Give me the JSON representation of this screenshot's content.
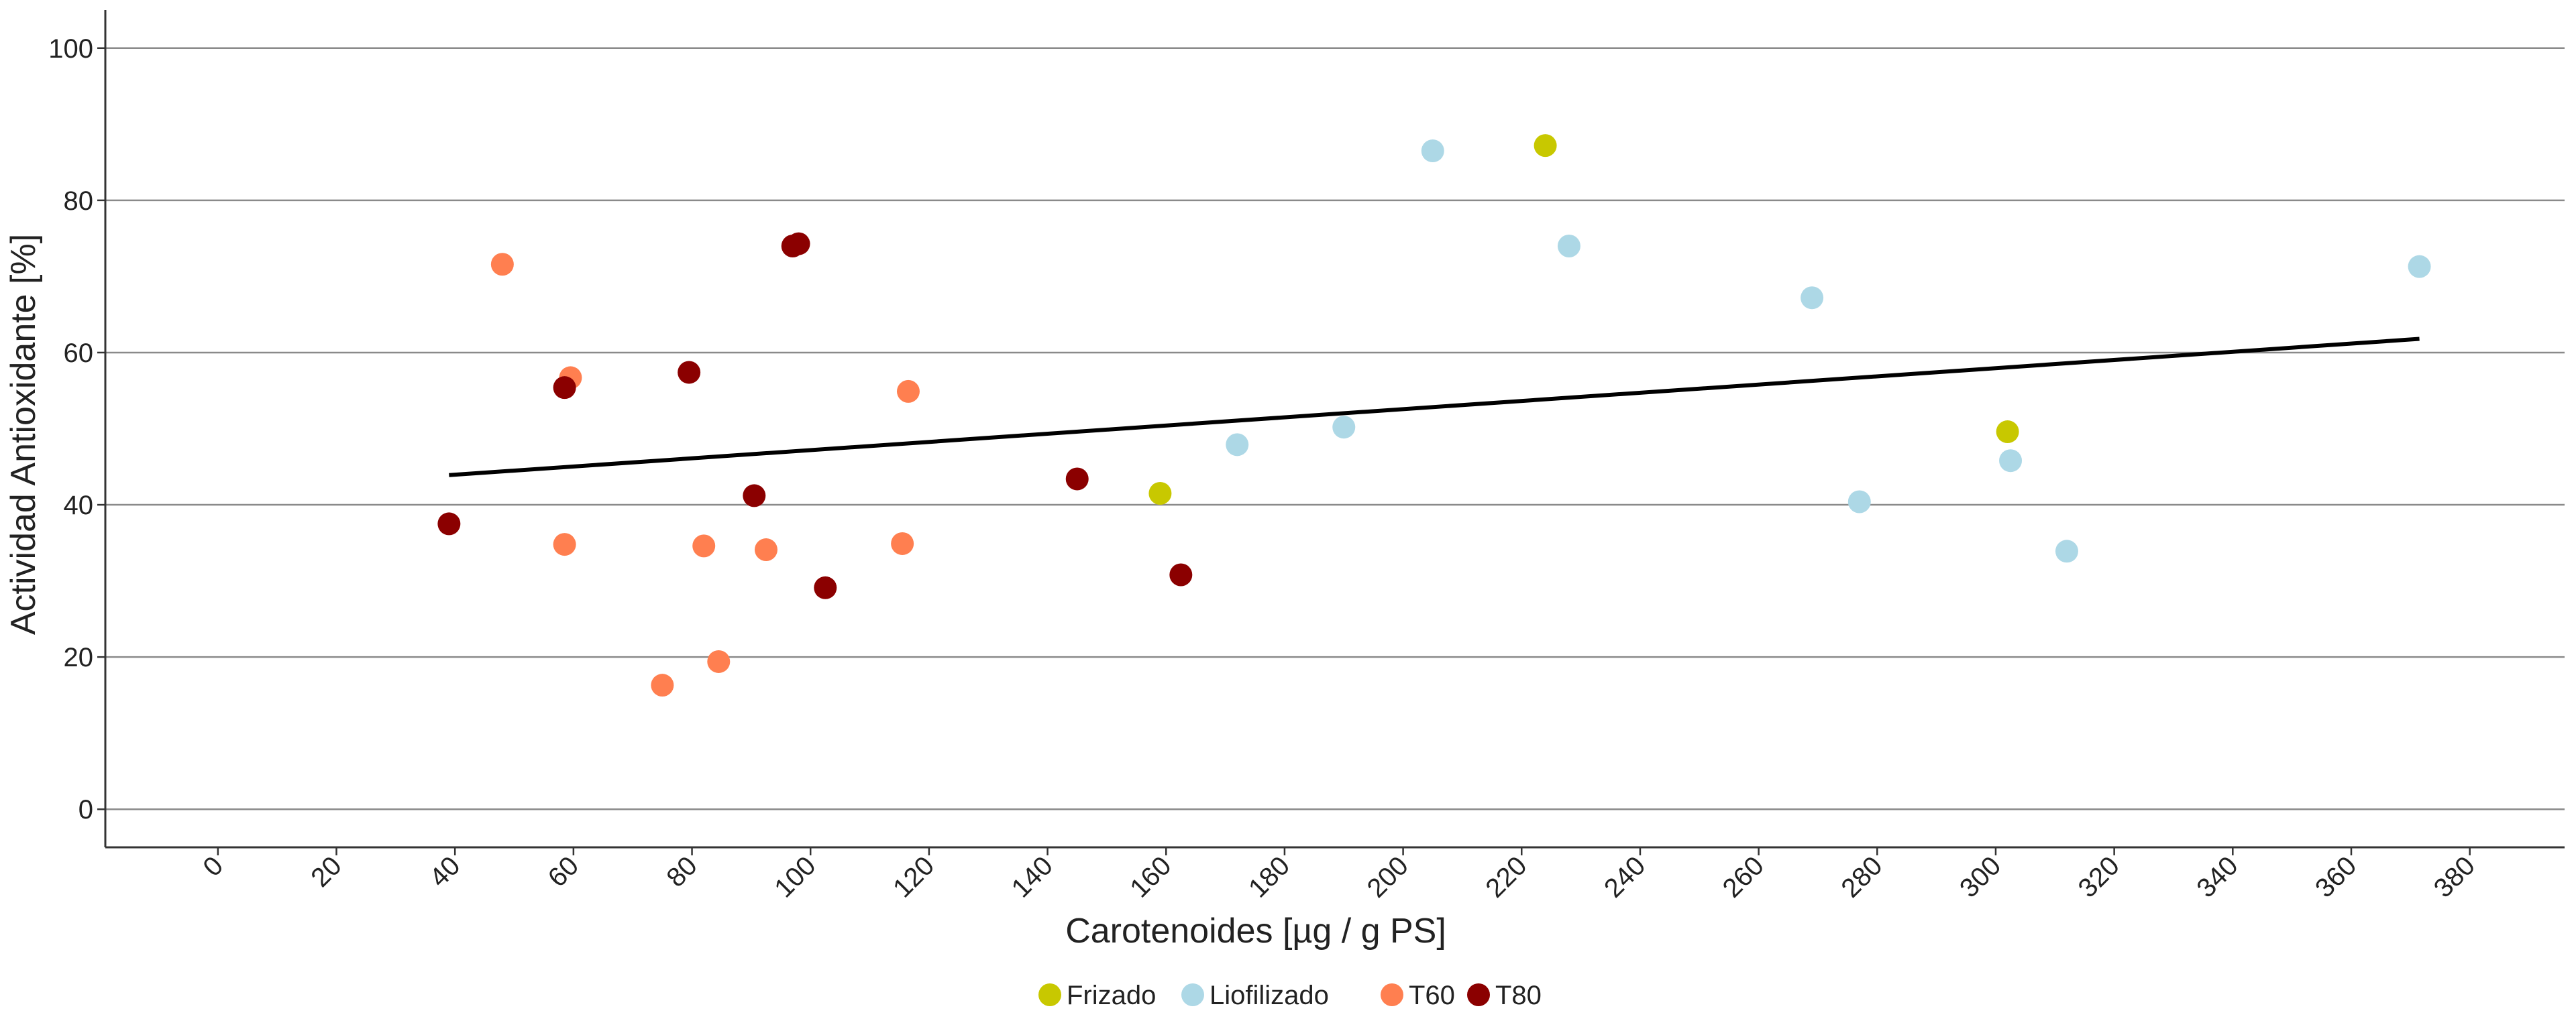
{
  "chart_data": {
    "type": "scatter",
    "title": "",
    "xlabel": "Carotenoides [µg / g PS]",
    "ylabel": "Actividad Antioxidante [%]",
    "xlim": [
      -19,
      396
    ],
    "ylim": [
      -5,
      105
    ],
    "x_ticks": [
      0,
      20,
      40,
      60,
      80,
      100,
      120,
      140,
      160,
      180,
      200,
      220,
      240,
      260,
      280,
      300,
      320,
      340,
      360,
      380
    ],
    "y_ticks": [
      0,
      20,
      40,
      60,
      80,
      100
    ],
    "grid": "horizontal",
    "legend_position": "bottom",
    "series": [
      {
        "name": "Frizado",
        "color": "#c8c800",
        "points": [
          [
            159,
            41.5
          ],
          [
            224,
            87.2
          ],
          [
            302,
            49.6
          ]
        ]
      },
      {
        "name": "Liofilizado",
        "color": "#add8e6",
        "points": [
          [
            172,
            47.9
          ],
          [
            190,
            50.2
          ],
          [
            205,
            86.5
          ],
          [
            228,
            74.0
          ],
          [
            269,
            67.2
          ],
          [
            277,
            40.4
          ],
          [
            302.5,
            45.8
          ],
          [
            312,
            33.9
          ],
          [
            371.5,
            71.3
          ]
        ]
      },
      {
        "name": "T60",
        "color": "#ff7f50",
        "points": [
          [
            48,
            71.6
          ],
          [
            58.5,
            34.8
          ],
          [
            59.5,
            56.7
          ],
          [
            75,
            16.3
          ],
          [
            82,
            34.6
          ],
          [
            84.5,
            19.4
          ],
          [
            92.5,
            34.1
          ],
          [
            115.5,
            34.9
          ],
          [
            116.5,
            54.9
          ]
        ]
      },
      {
        "name": "T80",
        "color": "#8b0000",
        "points": [
          [
            39,
            37.5
          ],
          [
            58.5,
            55.4
          ],
          [
            79.5,
            57.4
          ],
          [
            90.5,
            41.2
          ],
          [
            97,
            74.0
          ],
          [
            98,
            74.3
          ],
          [
            102.5,
            29.1
          ],
          [
            145,
            43.4
          ],
          [
            162.5,
            30.8
          ]
        ]
      }
    ],
    "trendline": {
      "x": [
        39,
        371.5
      ],
      "y": [
        43.9,
        61.8
      ]
    }
  }
}
